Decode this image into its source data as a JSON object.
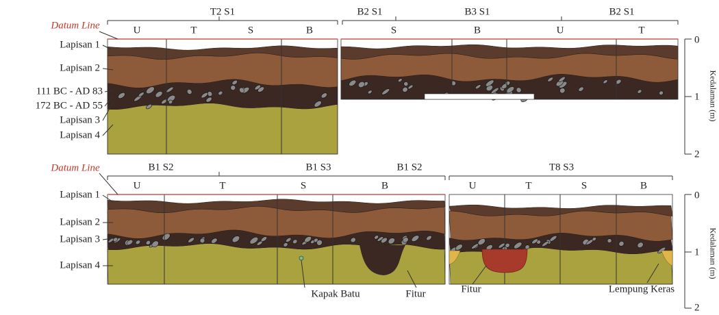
{
  "top": {
    "datum": "Datum Line",
    "sections": [
      "T2 S1",
      "B2 S1",
      "B3 S1",
      "B2 S1"
    ],
    "walls": [
      "U",
      "T",
      "S",
      "B",
      "S",
      "B",
      "U",
      "T"
    ],
    "layers": [
      "Lapisan 1",
      "Lapisan 2",
      "111 BC - AD 83",
      "172 BC - AD 55",
      "Lapisan 3",
      "Lapisan 4"
    ],
    "depth_ticks": [
      "0",
      "1",
      "2"
    ],
    "depth_label": "Kedalaman (m)"
  },
  "bottom": {
    "datum": "Datum Line",
    "sections": [
      "B1 S2",
      "B1 S3",
      "B1 S2",
      "T8 S3"
    ],
    "walls": [
      "U",
      "T",
      "S",
      "B",
      "U",
      "T",
      "S",
      "B"
    ],
    "layers": [
      "Lapisan 1",
      "Lapisan 2",
      "Lapisan 3",
      "Lapisan 4"
    ],
    "annotations": [
      "Kapak Batu",
      "Fitur",
      "Fitur",
      "Lempung Keras"
    ],
    "depth_ticks": [
      "0",
      "1",
      "2"
    ],
    "depth_label": "Kedalaman (m)"
  }
}
